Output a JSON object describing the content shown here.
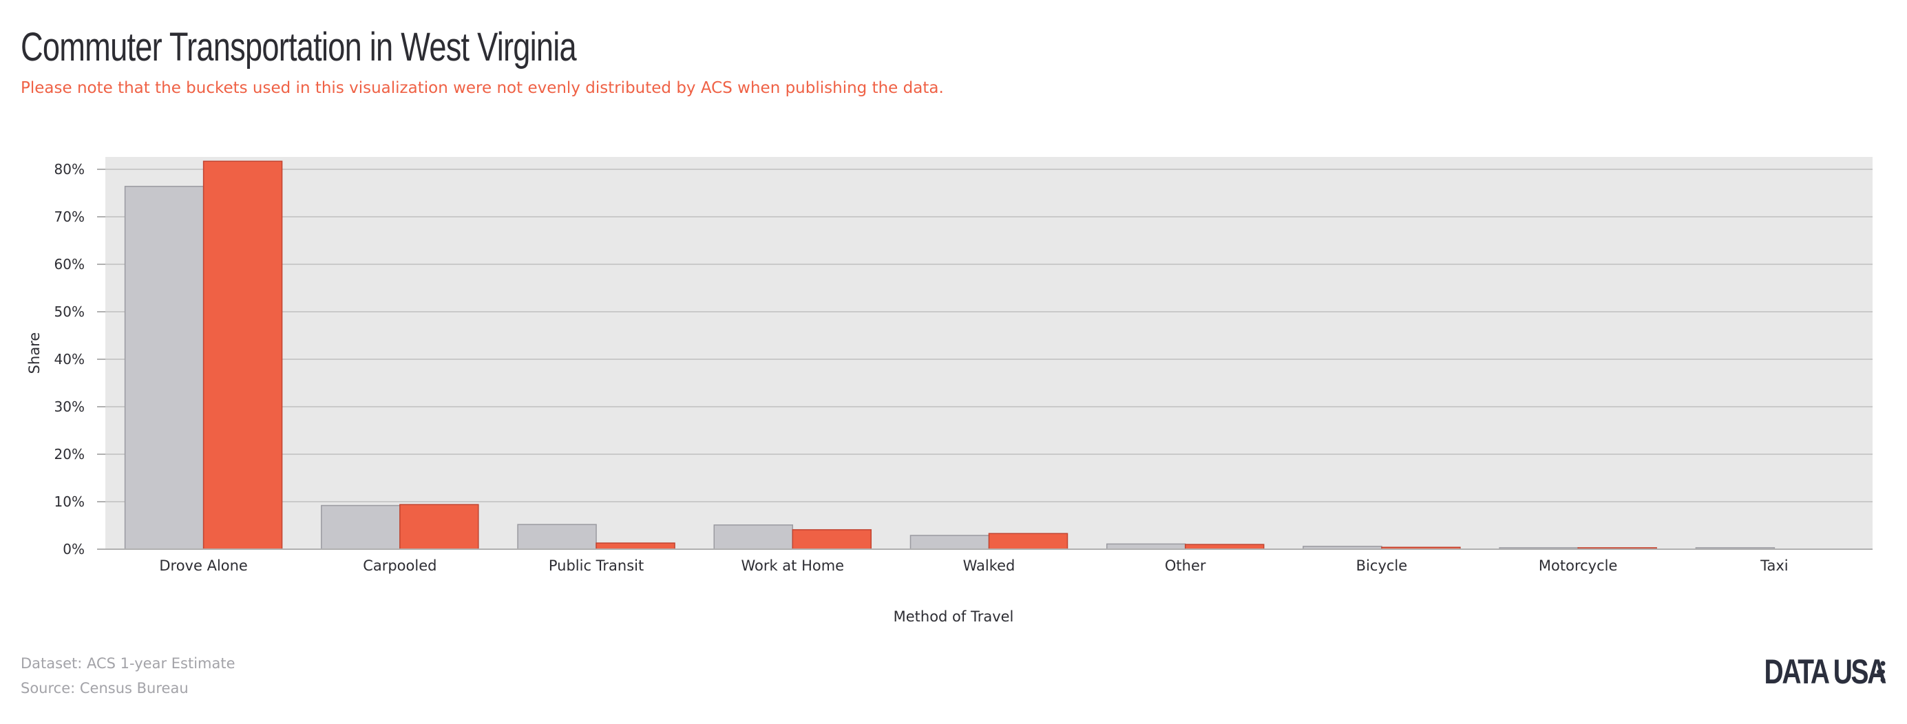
{
  "title": "Commuter Transportation in West Virginia",
  "subtitle": "Please note that the buckets used in this visualization were not evenly distributed by ACS when publishing the data.",
  "footer": {
    "dataset": "Dataset: ACS 1-year Estimate",
    "source": "Source: Census Bureau"
  },
  "brand": {
    "logo_text": "DATA USA",
    "icon": "data-usa-dots-icon"
  },
  "colors": {
    "background_panel": "#e8e8e8",
    "gridline": "#c9c9c9",
    "series_gray": "#c6c6cb",
    "series_gray_stroke": "#9a9aa0",
    "series_red": "#ef6145",
    "series_red_stroke": "#c14431",
    "axis_text": "#2d2d33",
    "subtitle_text": "#ef6145",
    "footer_text": "#a3a3a8",
    "brand_text": "#2b2f3d"
  },
  "chart_data": {
    "type": "bar",
    "title": "Commuter Transportation in West Virginia",
    "xlabel": "Method of Travel",
    "ylabel": "Share",
    "ylim": [
      0,
      0.82
    ],
    "y_ticks": [
      0,
      0.1,
      0.2,
      0.3,
      0.4,
      0.5,
      0.6,
      0.7,
      0.8
    ],
    "y_tick_labels": [
      "0%",
      "10%",
      "20%",
      "30%",
      "40%",
      "50%",
      "60%",
      "70%",
      "80%"
    ],
    "grid": true,
    "legend": "none",
    "categories": [
      "Drove Alone",
      "Carpooled",
      "Public Transit",
      "Work at Home",
      "Walked",
      "Other",
      "Bicycle",
      "Motorcycle",
      "Taxi"
    ],
    "series": [
      {
        "color": "#c6c6cb",
        "values": [
          0.764,
          0.092,
          0.052,
          0.051,
          0.029,
          0.011,
          0.006,
          0.003,
          0.003
        ]
      },
      {
        "color": "#ef6145",
        "values": [
          0.817,
          0.094,
          0.013,
          0.041,
          0.033,
          0.01,
          0.004,
          0.003,
          0
        ]
      }
    ]
  }
}
